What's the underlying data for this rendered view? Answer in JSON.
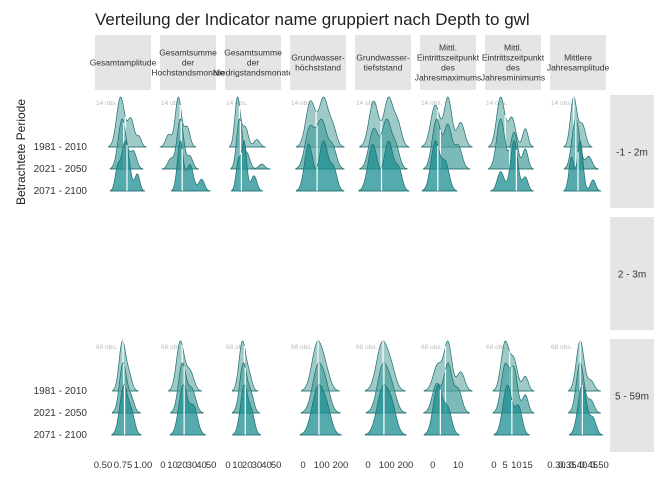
{
  "chart_data": {
    "type": "ridgeline",
    "title": "Verteilung der Indicator name gruppiert nach Depth to gwl",
    "ylabel": "Betrachtete Periode",
    "periods": [
      "1981 - 2010",
      "2021 - 2050",
      "2071 - 2100"
    ],
    "column_facets": [
      {
        "label": "Gesamtamplitude",
        "lines": [
          "Gesamtamplitude"
        ],
        "ticks": [
          "0.50",
          "0.75",
          "1.00"
        ],
        "domain": [
          0.4,
          1.1
        ]
      },
      {
        "label": "Gesamtsumme der Hochstandsmonate",
        "lines": [
          "Gesamtsumme",
          "der",
          "Hochstandsmonate"
        ],
        "ticks": [
          "0",
          "10",
          "20",
          "30",
          "40",
          "50"
        ],
        "domain": [
          -3,
          55
        ]
      },
      {
        "label": "Gesamtsumme der Niedrigstandsmonate",
        "lines": [
          "Gesamtsumme",
          "der",
          "Niedrigstandsmonate"
        ],
        "ticks": [
          "0",
          "10",
          "20",
          "30",
          "40",
          "50"
        ],
        "domain": [
          -3,
          55
        ]
      },
      {
        "label": "Grundwasser-höchststand",
        "lines": [
          "Grundwasser-",
          "höchststand"
        ],
        "ticks": [
          "0",
          "100",
          "200"
        ],
        "domain": [
          -70,
          230
        ]
      },
      {
        "label": "Grundwasser-tiefststand",
        "lines": [
          "Grundwasser-",
          "tiefststand"
        ],
        "ticks": [
          "0",
          "100",
          "200"
        ],
        "domain": [
          -70,
          230
        ]
      },
      {
        "label": "Mittl. Eintrittszeitpunkt des Jahresmaximums",
        "lines": [
          "Mittl.",
          "Eintrittszeitpunkt",
          "des",
          "Jahresmaximums"
        ],
        "ticks": [
          "0",
          "10"
        ],
        "domain": [
          -5,
          17
        ]
      },
      {
        "label": "Mittl. Eintrittszeitpunkt des Jahresminimums",
        "lines": [
          "Mittl.",
          "Eintrittszeitpunkt",
          "des",
          "Jahresminimums"
        ],
        "ticks": [
          "0",
          "5",
          "10",
          "15"
        ],
        "domain": [
          -4,
          21
        ]
      },
      {
        "label": "Mittlere Jahresamplitude",
        "lines": [
          "Mittlere",
          "Jahresamplitude"
        ],
        "ticks": [
          "0.30",
          "0.35",
          "0.40",
          "0.45",
          "0.50"
        ],
        "domain": [
          0.27,
          0.53
        ]
      }
    ],
    "row_facets": [
      {
        "label": "-1 - 2m",
        "n_label": "14 obs.",
        "has_data": true
      },
      {
        "label": "2 - 3m",
        "n_label": "",
        "has_data": false
      },
      {
        "label": "5 - 59m",
        "n_label": "68 obs.",
        "has_data": true
      }
    ],
    "series": [
      {
        "name": "1981 - 2010",
        "color": "#7fb8b5"
      },
      {
        "name": "2021 - 2050",
        "color": "#4fa3a0"
      },
      {
        "name": "2071 - 2100",
        "color": "#1c8e92"
      }
    ],
    "distributions": {
      "-1 - 2m": [
        [
          {
            "median": 0.78,
            "peaks": [
              [
                0.72,
                1.0,
                0.05
              ],
              [
                0.85,
                0.55,
                0.04
              ],
              [
                0.95,
                0.2,
                0.03
              ]
            ]
          },
          {
            "median": 0.76,
            "peaks": [
              [
                0.74,
                1.0,
                0.05
              ],
              [
                0.88,
                0.35,
                0.04
              ]
            ]
          },
          {
            "median": 0.8,
            "peaks": [
              [
                0.78,
                0.9,
                0.05
              ],
              [
                0.68,
                0.35,
                0.03
              ],
              [
                0.93,
                0.3,
                0.03
              ]
            ]
          }
        ],
        [
          {
            "median": 18,
            "peaks": [
              [
                16,
                1.0,
                3.2
              ],
              [
                25,
                0.4,
                3
              ],
              [
                6,
                0.25,
                3
              ]
            ]
          },
          {
            "median": 19,
            "peaks": [
              [
                18,
                1.0,
                3.5
              ],
              [
                28,
                0.25,
                3
              ],
              [
                8,
                0.2,
                3
              ]
            ]
          },
          {
            "median": 20,
            "peaks": [
              [
                18,
                0.85,
                3
              ],
              [
                28,
                0.45,
                3.5
              ],
              [
                40,
                0.2,
                3
              ]
            ]
          }
        ],
        [
          {
            "median": 12,
            "peaks": [
              [
                10,
                1.0,
                2.8
              ],
              [
                18,
                0.4,
                3
              ],
              [
                30,
                0.15,
                3
              ]
            ]
          },
          {
            "median": 13,
            "peaks": [
              [
                12,
                1.0,
                3
              ],
              [
                20,
                0.3,
                3
              ],
              [
                35,
                0.1,
                3
              ]
            ]
          },
          {
            "median": 14,
            "peaks": [
              [
                11,
                0.6,
                2.5
              ],
              [
                17,
                0.95,
                2.5
              ],
              [
                27,
                0.3,
                3
              ]
            ]
          }
        ],
        [
          {
            "median": 70,
            "peaks": [
              [
                40,
                0.75,
                25
              ],
              [
                110,
                0.8,
                25
              ],
              [
                160,
                0.3,
                20
              ]
            ]
          },
          {
            "median": 75,
            "peaks": [
              [
                35,
                0.7,
                25
              ],
              [
                100,
                0.85,
                28
              ],
              [
                160,
                0.35,
                20
              ]
            ]
          },
          {
            "median": 75,
            "peaks": [
              [
                30,
                0.8,
                22
              ],
              [
                110,
                0.85,
                25
              ],
              [
                165,
                0.35,
                18
              ]
            ]
          }
        ],
        [
          {
            "median": 70,
            "peaks": [
              [
                30,
                0.75,
                25
              ],
              [
                110,
                0.8,
                25
              ],
              [
                160,
                0.35,
                20
              ]
            ]
          },
          {
            "median": 70,
            "peaks": [
              [
                30,
                0.7,
                25
              ],
              [
                100,
                0.85,
                25
              ],
              [
                150,
                0.35,
                20
              ]
            ]
          },
          {
            "median": 72,
            "peaks": [
              [
                25,
                0.8,
                25
              ],
              [
                110,
                0.85,
                25
              ],
              [
                165,
                0.35,
                18
              ]
            ]
          }
        ],
        [
          {
            "median": 2,
            "peaks": [
              [
                1,
                0.85,
                1.8
              ],
              [
                6,
                1.0,
                1.5
              ],
              [
                11,
                0.5,
                1.5
              ]
            ]
          },
          {
            "median": 3,
            "peaks": [
              [
                1.5,
                0.75,
                1.7
              ],
              [
                6,
                0.65,
                1.5
              ],
              [
                10,
                0.35,
                1.5
              ]
            ]
          },
          {
            "median": 2,
            "peaks": [
              [
                1,
                0.9,
                1.7
              ],
              [
                5,
                0.5,
                1.5
              ]
            ]
          }
        ],
        [
          {
            "median": 5,
            "peaks": [
              [
                3,
                0.95,
                1.8
              ],
              [
                8,
                0.55,
                1.6
              ],
              [
                14,
                0.35,
                1.2
              ]
            ]
          },
          {
            "median": 7,
            "peaks": [
              [
                3,
                0.75,
                1.8
              ],
              [
                9,
                0.55,
                1.6
              ],
              [
                14,
                0.3,
                1.2
              ]
            ]
          },
          {
            "median": 10,
            "peaks": [
              [
                9,
                0.9,
                1.6
              ],
              [
                3,
                0.35,
                1.5
              ],
              [
                14,
                0.25,
                1.2
              ]
            ]
          }
        ],
        [
          {
            "median": 0.38,
            "peaks": [
              [
                0.38,
                1.0,
                0.015
              ],
              [
                0.42,
                0.45,
                0.015
              ]
            ]
          },
          {
            "median": 0.39,
            "peaks": [
              [
                0.39,
                1.0,
                0.018
              ],
              [
                0.45,
                0.25,
                0.015
              ]
            ]
          },
          {
            "median": 0.4,
            "peaks": [
              [
                0.37,
                0.6,
                0.012
              ],
              [
                0.41,
                0.9,
                0.013
              ],
              [
                0.47,
                0.2,
                0.012
              ]
            ]
          }
        ]
      ],
      "5 - 59m": [
        [
          {
            "median": 0.75,
            "peaks": [
              [
                0.74,
                1.0,
                0.04
              ],
              [
                0.82,
                0.35,
                0.04
              ]
            ]
          },
          {
            "median": 0.76,
            "peaks": [
              [
                0.75,
                1.0,
                0.045
              ],
              [
                0.85,
                0.3,
                0.04
              ]
            ]
          },
          {
            "median": 0.77,
            "peaks": [
              [
                0.76,
                0.9,
                0.05
              ],
              [
                0.86,
                0.35,
                0.04
              ]
            ]
          }
        ],
        [
          {
            "median": 20,
            "peaks": [
              [
                18,
                1.0,
                4
              ],
              [
                28,
                0.4,
                4
              ]
            ]
          },
          {
            "median": 22,
            "peaks": [
              [
                20,
                0.95,
                4
              ],
              [
                30,
                0.45,
                4
              ]
            ]
          },
          {
            "median": 22,
            "peaks": [
              [
                21,
                0.9,
                4.5
              ],
              [
                32,
                0.5,
                4
              ]
            ]
          }
        ],
        [
          {
            "median": 17,
            "peaks": [
              [
                15,
                1.0,
                3.5
              ],
              [
                22,
                0.3,
                3
              ]
            ]
          },
          {
            "median": 18,
            "peaks": [
              [
                16,
                1.0,
                3.8
              ],
              [
                24,
                0.35,
                3
              ]
            ]
          },
          {
            "median": 18,
            "peaks": [
              [
                17,
                0.95,
                4
              ],
              [
                25,
                0.35,
                3
              ]
            ]
          }
        ],
        [
          {
            "median": 80,
            "peaks": [
              [
                75,
                1.0,
                28
              ],
              [
                120,
                0.4,
                25
              ]
            ]
          },
          {
            "median": 85,
            "peaks": [
              [
                80,
                1.0,
                30
              ],
              [
                125,
                0.4,
                25
              ]
            ]
          },
          {
            "median": 85,
            "peaks": [
              [
                80,
                1.0,
                32
              ],
              [
                130,
                0.4,
                25
              ]
            ]
          }
        ],
        [
          {
            "median": 80,
            "peaks": [
              [
                75,
                1.0,
                30
              ],
              [
                125,
                0.4,
                25
              ]
            ]
          },
          {
            "median": 85,
            "peaks": [
              [
                80,
                1.0,
                30
              ],
              [
                130,
                0.4,
                25
              ]
            ]
          },
          {
            "median": 85,
            "peaks": [
              [
                80,
                1.0,
                32
              ],
              [
                130,
                0.45,
                25
              ]
            ]
          }
        ],
        [
          {
            "median": 5,
            "peaks": [
              [
                2,
                0.55,
                1.8
              ],
              [
                6,
                1.0,
                1.5
              ],
              [
                11,
                0.4,
                1.5
              ]
            ]
          },
          {
            "median": 5,
            "peaks": [
              [
                1.5,
                0.5,
                1.7
              ],
              [
                6,
                0.85,
                1.6
              ],
              [
                10,
                0.4,
                1.5
              ]
            ]
          },
          {
            "median": 3,
            "peaks": [
              [
                2,
                1.0,
                1.8
              ],
              [
                6,
                0.5,
                1.5
              ]
            ]
          }
        ],
        [
          {
            "median": 7,
            "peaks": [
              [
                5,
                1.0,
                1.8
              ],
              [
                9,
                0.6,
                1.6
              ],
              [
                14,
                0.3,
                1.3
              ]
            ]
          },
          {
            "median": 8,
            "peaks": [
              [
                5,
                0.8,
                1.8
              ],
              [
                9,
                0.7,
                1.6
              ],
              [
                14,
                0.3,
                1.3
              ]
            ]
          },
          {
            "median": 8,
            "peaks": [
              [
                6,
                0.9,
                2
              ],
              [
                11,
                0.5,
                1.6
              ]
            ]
          }
        ],
        [
          {
            "median": 0.41,
            "peaks": [
              [
                0.41,
                1.0,
                0.018
              ],
              [
                0.46,
                0.2,
                0.015
              ]
            ]
          },
          {
            "median": 0.41,
            "peaks": [
              [
                0.41,
                1.0,
                0.018
              ],
              [
                0.46,
                0.25,
                0.015
              ]
            ]
          },
          {
            "median": 0.42,
            "peaks": [
              [
                0.42,
                0.95,
                0.02
              ],
              [
                0.47,
                0.3,
                0.015
              ]
            ]
          }
        ]
      ]
    }
  }
}
